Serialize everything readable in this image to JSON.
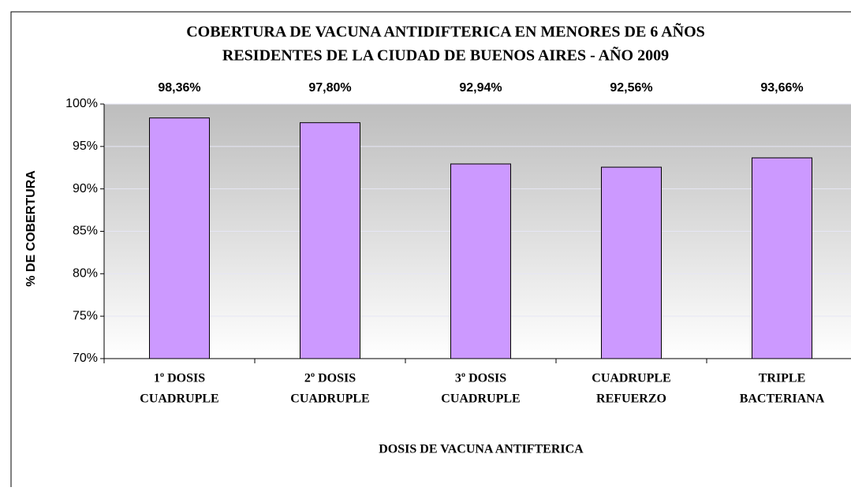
{
  "chart_data": {
    "type": "bar",
    "title": [
      "COBERTURA DE VACUNA ANTIDIFTERICA EN  MENORES DE 6 AÑOS",
      "RESIDENTES DE LA CIUDAD DE BUENOS AIRES - AÑO 2009"
    ],
    "y_label": "% DE COBERTURA",
    "x_label": "DOSIS DE VACUNA ANTIFTERICA",
    "categories": [
      [
        "1º DOSIS",
        "CUADRUPLE"
      ],
      [
        "2º DOSIS",
        "CUADRUPLE"
      ],
      [
        "3º DOSIS",
        "CUADRUPLE"
      ],
      [
        "CUADRUPLE",
        "REFUERZO"
      ],
      [
        "TRIPLE",
        "BACTERIANA"
      ]
    ],
    "values": [
      98.36,
      97.8,
      92.94,
      92.56,
      93.66
    ],
    "value_labels": [
      "98,36%",
      "97,80%",
      "92,94%",
      "92,56%",
      "93,66%"
    ],
    "color": "#cc99ff",
    "ylim": [
      70,
      100
    ],
    "yticks": [
      {
        "value": 70,
        "label": "70%"
      },
      {
        "value": 75,
        "label": "75%"
      },
      {
        "value": 80,
        "label": "80%"
      },
      {
        "value": 85,
        "label": "85%"
      },
      {
        "value": 90,
        "label": "90%"
      },
      {
        "value": 95,
        "label": "95%"
      },
      {
        "value": 100,
        "label": "100%"
      }
    ],
    "grid": true
  }
}
